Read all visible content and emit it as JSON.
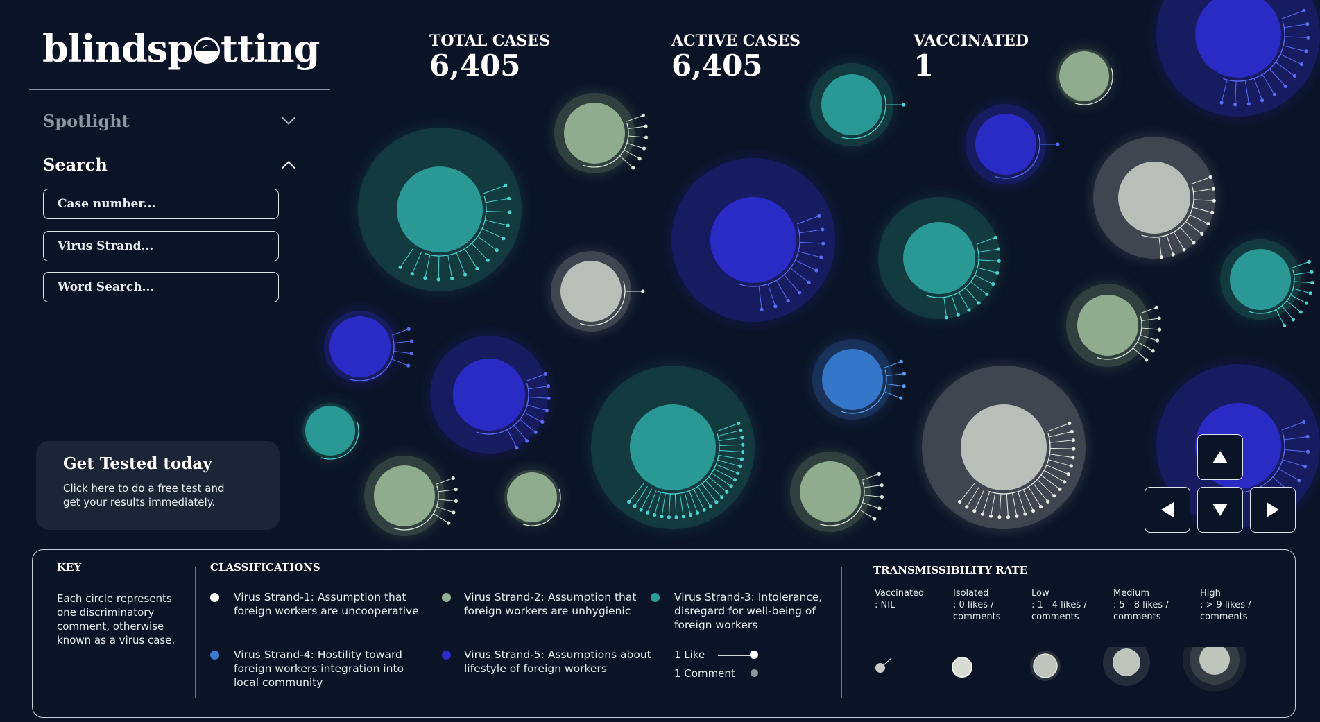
{
  "brand": {
    "logo_part1": "blindsp",
    "logo_part2": "tting"
  },
  "sidebar": {
    "spotlight_label": "Spotlight",
    "search_label": "Search",
    "case_placeholder": "Case number...",
    "strand_placeholder": "Virus Strand...",
    "word_placeholder": "Word Search...",
    "cta_title": "Get Tested today",
    "cta_text": "Click here to do a free test and get your results immediately."
  },
  "stats": {
    "total_label": "TOTAL CASES",
    "total_value": "6,405",
    "active_label": "ACTIVE CASES",
    "active_value": "6,405",
    "vaccinated_label": "VACCINATED",
    "vaccinated_value": "1"
  },
  "colors": {
    "background": "#0b1426",
    "strand1": "#ffffff",
    "strand2": "#8fb294",
    "strand3": "#2a9d99",
    "strand4": "#3a7ad0",
    "strand5": "#2b2bc8"
  },
  "nav": {
    "up": "up-arrow",
    "left": "left-arrow",
    "down": "down-arrow",
    "right": "right-arrow"
  },
  "key": {
    "title": "KEY",
    "text": "Each circle represents one discriminatory comment, otherwise known as a virus case.",
    "classifications_title": "CLASSIFICATIONS",
    "strands": [
      {
        "label": "Virus Strand-1: Assumption that foreign workers are uncooperative",
        "color": "#ffffff"
      },
      {
        "label": "Virus Strand-2: Assumption that foreign workers are unhygienic",
        "color": "#8fb294"
      },
      {
        "label": "Virus Strand-3: Intolerance, disregard for well-being of foreign workers",
        "color": "#2a9d99"
      },
      {
        "label": "Virus Strand-4: Hostility toward foreign workers integration into local community",
        "color": "#3a7ad0"
      },
      {
        "label": "Virus Strand-5: Assumptions about lifestyle of foreign workers",
        "color": "#2b2bc8"
      }
    ],
    "like_label": "1 Like",
    "comment_label": "1 Comment",
    "transmissibility_title": "TRANSMISSIBILITY RATE",
    "rates": [
      {
        "name": "Vaccinated",
        "detail": ": NIL"
      },
      {
        "name": "Isolated",
        "detail": ": 0 likes / comments"
      },
      {
        "name": "Low",
        "detail": ": 1 - 4 likes / comments"
      },
      {
        "name": "Medium",
        "detail": ": 5 - 8 likes / comments"
      },
      {
        "name": "High",
        "detail": ": > 9 likes / comments"
      }
    ]
  }
}
